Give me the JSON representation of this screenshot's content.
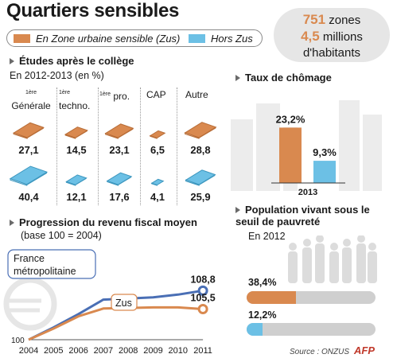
{
  "header": {
    "title": "Quartiers sensibles"
  },
  "legend": {
    "zus_label": "En Zone urbaine sensible (Zus)",
    "hors_label": "Hors Zus"
  },
  "colors": {
    "zus": "#d9894f",
    "hors": "#6cc0e5",
    "line_france": "#4a6fb5",
    "grey": "#cfcfcf",
    "building": "#ececec",
    "people": "#dcdcdc"
  },
  "summary": {
    "zones_num": "751",
    "zones_word": "zones",
    "hab_num": "4,5",
    "hab_word": "millions",
    "hab_line2": "d'habitants"
  },
  "etudes": {
    "heading": "Études après le collège",
    "period": "En 2012-2013  (en %)",
    "categories": [
      {
        "sup": "1ère",
        "name": "Générale",
        "zus": "27,1",
        "hors": "40,4"
      },
      {
        "sup": "1ère",
        "name": "techno.",
        "zus": "14,5",
        "hors": "12,1"
      },
      {
        "sup": "1ère",
        "name": "pro.",
        "zus": "23,1",
        "hors": "17,6"
      },
      {
        "sup": "",
        "name": "CAP",
        "zus": "6,5",
        "hors": "4,1"
      },
      {
        "sup": "",
        "name": "Autre",
        "zus": "28,8",
        "hors": "25,9"
      }
    ]
  },
  "chomage": {
    "heading": "Taux de chômage",
    "year": "2013"
  },
  "revenu": {
    "heading": "Progression du revenu fiscal moyen",
    "base": "(base 100 = 2004)",
    "france_label": "France métropolitaine",
    "zus_label": "Zus",
    "end_france": "108,8",
    "end_zus": "105,5",
    "start": "100"
  },
  "pauvrete": {
    "heading": "Population vivant sous le seuil de pauvreté",
    "year": "En 2012"
  },
  "footer": {
    "source": "Source : ONZUS",
    "agency": "AFP"
  },
  "chart_data": [
    {
      "type": "bar",
      "title": "Études après le collège",
      "subtitle": "En 2012-2013  (en %)",
      "categories": [
        "1ère Générale",
        "1ère techno.",
        "1ère pro.",
        "CAP",
        "Autre"
      ],
      "series": [
        {
          "name": "En Zone urbaine sensible (Zus)",
          "values": [
            27.1,
            14.5,
            23.1,
            6.5,
            28.8
          ]
        },
        {
          "name": "Hors Zus",
          "values": [
            40.4,
            12.1,
            17.6,
            4.1,
            25.9
          ]
        }
      ]
    },
    {
      "type": "bar",
      "title": "Taux de chômage",
      "categories": [
        "2013"
      ],
      "series": [
        {
          "name": "En Zone urbaine sensible (Zus)",
          "values": [
            23.2
          ]
        },
        {
          "name": "Hors Zus",
          "values": [
            9.3
          ]
        }
      ],
      "data_labels": [
        "23,2%",
        "9,3%"
      ],
      "ylim": [
        0,
        30
      ]
    },
    {
      "type": "line",
      "title": "Progression du revenu fiscal moyen",
      "subtitle": "(base 100 = 2004)",
      "x": [
        2004,
        2005,
        2006,
        2007,
        2008,
        2009,
        2010,
        2011
      ],
      "x_ticks": [
        "2004",
        "2005",
        "2006",
        "2007",
        "2008",
        "2009",
        "2010",
        "2011"
      ],
      "series": [
        {
          "name": "France métropolitaine",
          "values": [
            100,
            102.2,
            104.6,
            107.2,
            107.4,
            107.6,
            108.1,
            108.8
          ]
        },
        {
          "name": "Zus",
          "values": [
            100,
            102.0,
            104.2,
            105.6,
            105.7,
            105.8,
            105.8,
            105.5
          ]
        }
      ],
      "ylim": [
        100,
        110
      ]
    },
    {
      "type": "bar",
      "title": "Population vivant sous le seuil de pauvreté",
      "subtitle": "En 2012",
      "categories": [
        "En Zone urbaine sensible (Zus)",
        "Hors Zus"
      ],
      "values": [
        38.4,
        12.2
      ],
      "data_labels": [
        "38,4%",
        "12,2%"
      ],
      "xlim": [
        0,
        100
      ]
    }
  ]
}
